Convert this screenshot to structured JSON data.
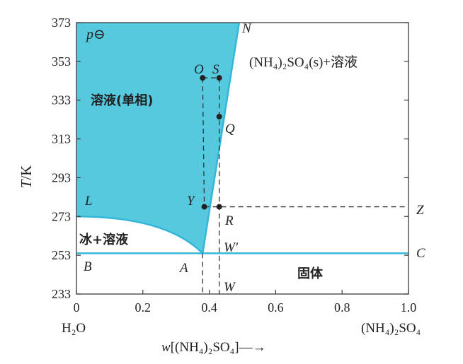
{
  "axes": {
    "y_label_italic": "T",
    "y_label_unit": "/K",
    "y_ticks": [
      "373",
      "353",
      "333",
      "313",
      "293",
      "273",
      "253",
      "233"
    ],
    "x_ticks": [
      "0",
      "0.2",
      "0.4",
      "0.6",
      "0.8",
      "1.0"
    ],
    "x_left_label": "H₂O",
    "x_right_label": "(NH₄)₂SO₄",
    "x_label_italic": "w",
    "x_label_rest": "[(NH₄)₂SO₄]—→"
  },
  "regions": {
    "pressure": "p⊖",
    "solution_single_phase": "溶液(单相)",
    "salt_plus_solution": "(NH₄)₂SO₄(s)+溶液",
    "ice_plus_solution": "冰+溶液",
    "solid": "固体"
  },
  "points": {
    "N": "N",
    "O": "O",
    "S": "S",
    "Q": "Q",
    "Y": "Y",
    "L": "L",
    "R": "R",
    "Z": "Z",
    "W_prime": "W′",
    "W": "W",
    "B": "B",
    "A": "A",
    "C": "C"
  },
  "colors": {
    "solution_fill": "#56c9de",
    "curve": "#33b6d9",
    "axis": "#3a3a3a",
    "dash": "#333333",
    "dot": "#222222"
  },
  "diagram_values": {
    "eutectic": {
      "w": 0.38,
      "T": 254
    },
    "solubility_end": {
      "w": 0.49,
      "T": 373
    },
    "L": {
      "w": 0.0,
      "T": 273
    },
    "eutectic_line_T": 254,
    "O": {
      "w": 0.38,
      "T": 344.5
    },
    "S": {
      "w": 0.43,
      "T": 344.5
    },
    "Q": {
      "w": 0.43,
      "T": 324.5
    },
    "Y": {
      "w": 0.385,
      "T": 278
    },
    "R": {
      "w": 0.43,
      "T": 278
    },
    "dashed_line_T": 278
  }
}
